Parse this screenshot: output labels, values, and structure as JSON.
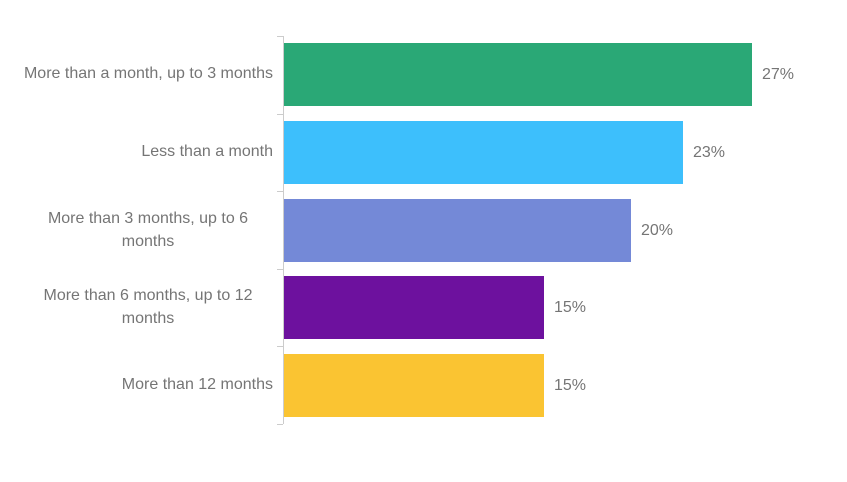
{
  "chart_data": {
    "type": "bar",
    "orientation": "horizontal",
    "title": "",
    "xlabel": "",
    "ylabel": "",
    "categories": [
      "More than a month, up to 3 months",
      "Less than a month",
      "More than 3 months, up to 6 months",
      "More than 6 months, up to 12 months",
      "More than 12 months"
    ],
    "values": [
      27,
      23,
      20,
      15,
      15
    ],
    "value_labels": [
      "27%",
      "23%",
      "20%",
      "15%",
      "15%"
    ],
    "bar_colors": [
      "#2AA876",
      "#3DBFFC",
      "#7489D7",
      "#6D119E",
      "#FAC432"
    ],
    "xlim": [
      0,
      30
    ],
    "grid": false,
    "legend": false,
    "label_color": "#757575",
    "value_label_color": "#757575",
    "axis_color": "#CCCCCC"
  }
}
